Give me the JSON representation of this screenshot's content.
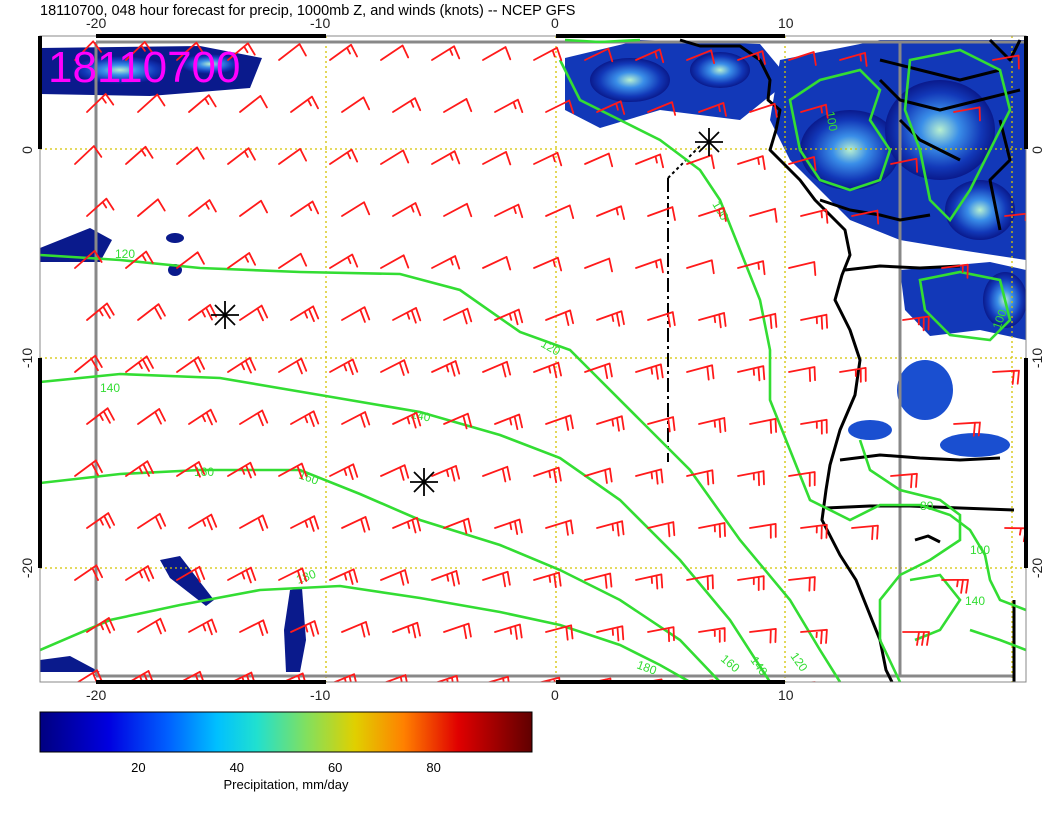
{
  "title": "18110700, 048 hour forecast for precip, 1000mb Z, and winds (knots) -- NCEP GFS",
  "stamp": "18110700",
  "colors": {
    "wind": "#ff1a1a",
    "contour": "#33dd33",
    "grid": "#d4c400",
    "frame": "#888888",
    "land": "#000000",
    "precip_low": "#0a1a8c",
    "precip_mid": "#2a7ae0",
    "precip_high": "#9adfc0"
  },
  "axes": {
    "x_ticks_top": [
      "-20",
      "-10",
      "0",
      "10"
    ],
    "x_ticks_bottom": [
      "-20",
      "-10",
      "0",
      "10"
    ],
    "y_ticks_left": [
      "0",
      "-10",
      "-20"
    ],
    "y_ticks_right": [
      "0",
      "-10",
      "-20"
    ]
  },
  "contours": [
    {
      "value": "120",
      "labels": [
        "120",
        "120",
        "120"
      ]
    },
    {
      "value": "140",
      "labels": [
        "140",
        "140",
        "140",
        "140"
      ]
    },
    {
      "value": "160",
      "labels": [
        "160",
        "160",
        "160"
      ]
    },
    {
      "value": "180",
      "labels": [
        "180",
        "180"
      ]
    },
    {
      "value": "100",
      "labels": [
        "100",
        "100",
        "100",
        "100"
      ]
    },
    {
      "value": "80",
      "labels": [
        "80"
      ]
    }
  ],
  "colorbar": {
    "ticks": [
      "20",
      "40",
      "60",
      "80"
    ],
    "caption": "Precipitation, mm/day",
    "range": [
      0,
      100
    ]
  },
  "markers": {
    "count": 3,
    "icon": "asterisk-icon"
  },
  "section_line": {
    "icon": "dashed-section-line"
  }
}
